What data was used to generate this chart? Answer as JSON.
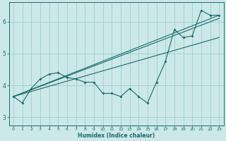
{
  "title": "",
  "xlabel": "Humidex (Indice chaleur)",
  "ylabel": "",
  "bg_color": "#cce8e8",
  "grid_color": "#9ecece",
  "line_color": "#1a6b6b",
  "xlim": [
    -0.5,
    23.5
  ],
  "ylim": [
    2.75,
    6.6
  ],
  "xticks": [
    0,
    1,
    2,
    3,
    4,
    5,
    6,
    7,
    8,
    9,
    10,
    11,
    12,
    13,
    14,
    15,
    16,
    17,
    18,
    19,
    20,
    21,
    22,
    23
  ],
  "yticks": [
    3,
    4,
    5,
    6
  ],
  "series1_x": [
    0,
    1,
    2,
    3,
    4,
    5,
    6,
    7,
    8,
    9,
    10,
    11,
    12,
    13,
    14,
    15,
    16,
    17,
    18,
    19,
    20,
    21,
    22,
    23
  ],
  "series1_y": [
    3.65,
    3.45,
    3.9,
    4.2,
    4.35,
    4.4,
    4.25,
    4.2,
    4.1,
    4.1,
    3.75,
    3.75,
    3.65,
    3.9,
    3.65,
    3.45,
    4.1,
    4.75,
    5.75,
    5.5,
    5.55,
    6.35,
    6.2,
    6.2
  ],
  "trend1_x": [
    0,
    23
  ],
  "trend1_y": [
    3.65,
    6.2
  ],
  "trend2_x": [
    0,
    23
  ],
  "trend2_y": [
    3.65,
    6.1
  ],
  "trend3_x": [
    0,
    23
  ],
  "trend3_y": [
    3.65,
    5.5
  ]
}
